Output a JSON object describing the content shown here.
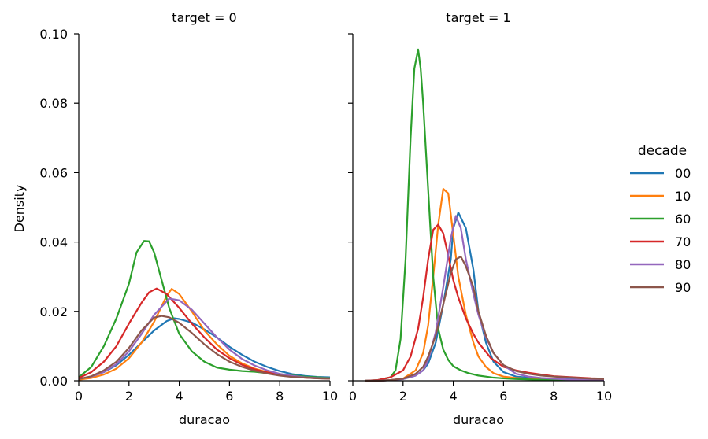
{
  "chart_data": {
    "type": "line",
    "shared_ylabel": "Density",
    "legend": {
      "title": "decade",
      "placement": "right",
      "entries": [
        {
          "label": "00",
          "color": "#1f77b4"
        },
        {
          "label": "10",
          "color": "#ff7f0e"
        },
        {
          "label": "60",
          "color": "#2ca02c"
        },
        {
          "label": "70",
          "color": "#d62728"
        },
        {
          "label": "80",
          "color": "#9467bd"
        },
        {
          "label": "90",
          "color": "#8c564b"
        }
      ]
    },
    "xlim": [
      0,
      10
    ],
    "ylim": [
      0,
      0.1
    ],
    "xticks": [
      "0",
      "2",
      "4",
      "6",
      "8",
      "10"
    ],
    "yticks": [
      "0.00",
      "0.02",
      "0.04",
      "0.06",
      "0.08",
      "0.10"
    ],
    "grid": false,
    "panels": [
      {
        "title": "target = 0",
        "xlabel": "duracao",
        "series": [
          {
            "name": "00",
            "x": [
              0,
              0.5,
              1,
              1.5,
              2,
              2.5,
              3,
              3.5,
              3.8,
              4,
              4.5,
              5,
              5.5,
              6,
              6.5,
              7,
              7.5,
              8,
              8.5,
              9,
              9.5,
              10
            ],
            "y": [
              0.0005,
              0.0012,
              0.0025,
              0.0045,
              0.0075,
              0.011,
              0.0145,
              0.0172,
              0.018,
              0.0178,
              0.0168,
              0.0148,
              0.0125,
              0.0098,
              0.0075,
              0.0055,
              0.004,
              0.0028,
              0.0019,
              0.0014,
              0.0011,
              0.001
            ]
          },
          {
            "name": "10",
            "x": [
              0,
              0.5,
              1,
              1.5,
              2,
              2.5,
              3,
              3.5,
              3.7,
              4,
              4.5,
              5,
              5.5,
              6,
              6.5,
              7,
              7.5,
              8,
              8.5,
              9,
              9.5,
              10
            ],
            "y": [
              0.0003,
              0.0008,
              0.0018,
              0.0035,
              0.0065,
              0.011,
              0.017,
              0.0245,
              0.0265,
              0.025,
              0.02,
              0.0145,
              0.0105,
              0.0072,
              0.005,
              0.0035,
              0.0025,
              0.0018,
              0.0013,
              0.001,
              0.0008,
              0.0007
            ]
          },
          {
            "name": "60",
            "x": [
              0,
              0.5,
              1,
              1.5,
              2,
              2.3,
              2.6,
              2.8,
              3,
              3.3,
              3.6,
              4,
              4.5,
              5,
              5.5,
              6,
              6.5,
              7,
              7.5,
              8,
              8.5,
              9,
              9.5,
              10
            ],
            "y": [
              0.001,
              0.004,
              0.01,
              0.018,
              0.028,
              0.037,
              0.0403,
              0.0402,
              0.037,
              0.029,
              0.021,
              0.0135,
              0.0085,
              0.0055,
              0.0038,
              0.0032,
              0.0028,
              0.0026,
              0.0022,
              0.0019,
              0.0015,
              0.0012,
              0.001,
              0.0008
            ]
          },
          {
            "name": "70",
            "x": [
              0,
              0.5,
              1,
              1.5,
              2,
              2.5,
              2.8,
              3.1,
              3.5,
              4,
              4.5,
              5,
              5.5,
              6,
              6.5,
              7,
              7.5,
              8,
              8.5,
              9,
              9.5,
              10
            ],
            "y": [
              0.0008,
              0.0025,
              0.0055,
              0.01,
              0.0165,
              0.0225,
              0.0255,
              0.0266,
              0.025,
              0.021,
              0.0165,
              0.0125,
              0.009,
              0.0065,
              0.0046,
              0.0033,
              0.0024,
              0.0017,
              0.0012,
              0.0009,
              0.0007,
              0.0006
            ]
          },
          {
            "name": "80",
            "x": [
              0,
              0.5,
              1,
              1.5,
              2,
              2.5,
              3,
              3.6,
              4,
              4.5,
              5,
              5.5,
              6,
              6.5,
              7,
              7.5,
              8,
              8.5,
              9,
              9.5,
              10
            ],
            "y": [
              0.0005,
              0.0012,
              0.0025,
              0.0048,
              0.0085,
              0.0135,
              0.019,
              0.0237,
              0.0232,
              0.0205,
              0.0165,
              0.0125,
              0.009,
              0.0063,
              0.0044,
              0.003,
              0.002,
              0.0014,
              0.001,
              0.0008,
              0.0007
            ]
          },
          {
            "name": "90",
            "x": [
              0,
              0.5,
              1,
              1.5,
              2,
              2.5,
              3,
              3.3,
              3.6,
              4,
              4.5,
              5,
              5.5,
              6,
              6.5,
              7,
              7.5,
              8,
              8.5,
              9,
              9.5,
              10
            ],
            "y": [
              0.0005,
              0.0013,
              0.003,
              0.0055,
              0.0095,
              0.0145,
              0.0182,
              0.0187,
              0.0183,
              0.0167,
              0.0138,
              0.0105,
              0.0077,
              0.0055,
              0.004,
              0.0029,
              0.0021,
              0.0015,
              0.0011,
              0.0009,
              0.0007,
              0.0006
            ]
          }
        ]
      },
      {
        "title": "target = 1",
        "xlabel": "duracao",
        "series": [
          {
            "name": "00",
            "x": [
              0.5,
              1,
              1.5,
              2,
              2.5,
              2.8,
              3,
              3.3,
              3.6,
              3.9,
              4,
              4.2,
              4.5,
              4.8,
              5,
              5.3,
              5.6,
              6,
              6.5,
              7,
              7.5,
              8,
              8.5,
              9,
              9.5,
              10
            ],
            "y": [
              0,
              0,
              0.0002,
              0.0005,
              0.0015,
              0.003,
              0.005,
              0.011,
              0.022,
              0.035,
              0.044,
              0.0485,
              0.044,
              0.032,
              0.02,
              0.011,
              0.0055,
              0.0025,
              0.0012,
              0.0009,
              0.0007,
              0.0006,
              0.0005,
              0.0004,
              0.0003,
              0.0003
            ]
          },
          {
            "name": "10",
            "x": [
              0.5,
              1,
              1.5,
              2,
              2.5,
              2.8,
              3,
              3.2,
              3.4,
              3.6,
              3.8,
              4,
              4.2,
              4.5,
              4.8,
              5,
              5.3,
              5.6,
              6,
              6.5,
              7,
              7.5,
              8,
              8.5,
              9,
              9.5,
              10
            ],
            "y": [
              0,
              0,
              0.0002,
              0.0006,
              0.003,
              0.008,
              0.016,
              0.03,
              0.045,
              0.0553,
              0.054,
              0.042,
              0.03,
              0.019,
              0.011,
              0.007,
              0.004,
              0.0022,
              0.0012,
              0.0008,
              0.0006,
              0.0005,
              0.0004,
              0.0003,
              0.0003,
              0.0002,
              0.0002
            ]
          },
          {
            "name": "60",
            "x": [
              0.5,
              1,
              1.5,
              1.7,
              1.9,
              2.1,
              2.3,
              2.45,
              2.6,
              2.7,
              2.8,
              3,
              3.2,
              3.4,
              3.6,
              3.8,
              4,
              4.3,
              4.6,
              5,
              5.3,
              5.6,
              6,
              6.5,
              7,
              7.5,
              8,
              8.5,
              9,
              9.5,
              10
            ],
            "y": [
              0,
              0.0002,
              0.001,
              0.003,
              0.012,
              0.035,
              0.07,
              0.09,
              0.0955,
              0.09,
              0.08,
              0.055,
              0.03,
              0.015,
              0.009,
              0.006,
              0.0042,
              0.003,
              0.0022,
              0.0015,
              0.0012,
              0.0009,
              0.0007,
              0.0005,
              0.0004,
              0.0003,
              0.0003,
              0.0002,
              0.0002,
              0.0002,
              0.0002
            ]
          },
          {
            "name": "70",
            "x": [
              0.5,
              1,
              1.5,
              2,
              2.3,
              2.6,
              2.8,
              3,
              3.2,
              3.4,
              3.6,
              3.8,
              4,
              4.2,
              4.5,
              4.8,
              5,
              5.5,
              6,
              6.5,
              7,
              7.5,
              8,
              8.5,
              9,
              9.5,
              10
            ],
            "y": [
              0,
              0.0002,
              0.001,
              0.003,
              0.007,
              0.015,
              0.024,
              0.035,
              0.0435,
              0.045,
              0.0425,
              0.036,
              0.029,
              0.024,
              0.018,
              0.0135,
              0.011,
              0.0065,
              0.004,
              0.003,
              0.0023,
              0.0018,
              0.0013,
              0.0011,
              0.0009,
              0.0007,
              0.0006
            ]
          },
          {
            "name": "80",
            "x": [
              0.5,
              1,
              1.5,
              2,
              2.5,
              2.8,
              3,
              3.3,
              3.6,
              3.9,
              4.1,
              4.3,
              4.5,
              4.8,
              5,
              5.3,
              5.6,
              6,
              6.5,
              7,
              7.5,
              8,
              8.5,
              9,
              9.5,
              10
            ],
            "y": [
              0,
              0,
              0.0002,
              0.0005,
              0.0015,
              0.003,
              0.006,
              0.014,
              0.027,
              0.041,
              0.0475,
              0.044,
              0.035,
              0.025,
              0.019,
              0.0125,
              0.008,
              0.0045,
              0.002,
              0.0012,
              0.0008,
              0.0006,
              0.0004,
              0.0003,
              0.0003,
              0.0002
            ]
          },
          {
            "name": "90",
            "x": [
              0.5,
              1,
              1.5,
              2,
              2.5,
              2.8,
              3,
              3.3,
              3.6,
              3.9,
              4.1,
              4.3,
              4.5,
              4.8,
              5,
              5.3,
              5.6,
              6,
              6.5,
              7,
              7.5,
              8,
              8.5,
              9,
              9.5,
              10
            ],
            "y": [
              0,
              0,
              0.0002,
              0.0006,
              0.002,
              0.004,
              0.007,
              0.013,
              0.022,
              0.031,
              0.035,
              0.0358,
              0.033,
              0.027,
              0.02,
              0.013,
              0.008,
              0.0045,
              0.0028,
              0.002,
              0.0015,
              0.0012,
              0.001,
              0.0008,
              0.0006,
              0.0005
            ]
          }
        ]
      }
    ]
  }
}
